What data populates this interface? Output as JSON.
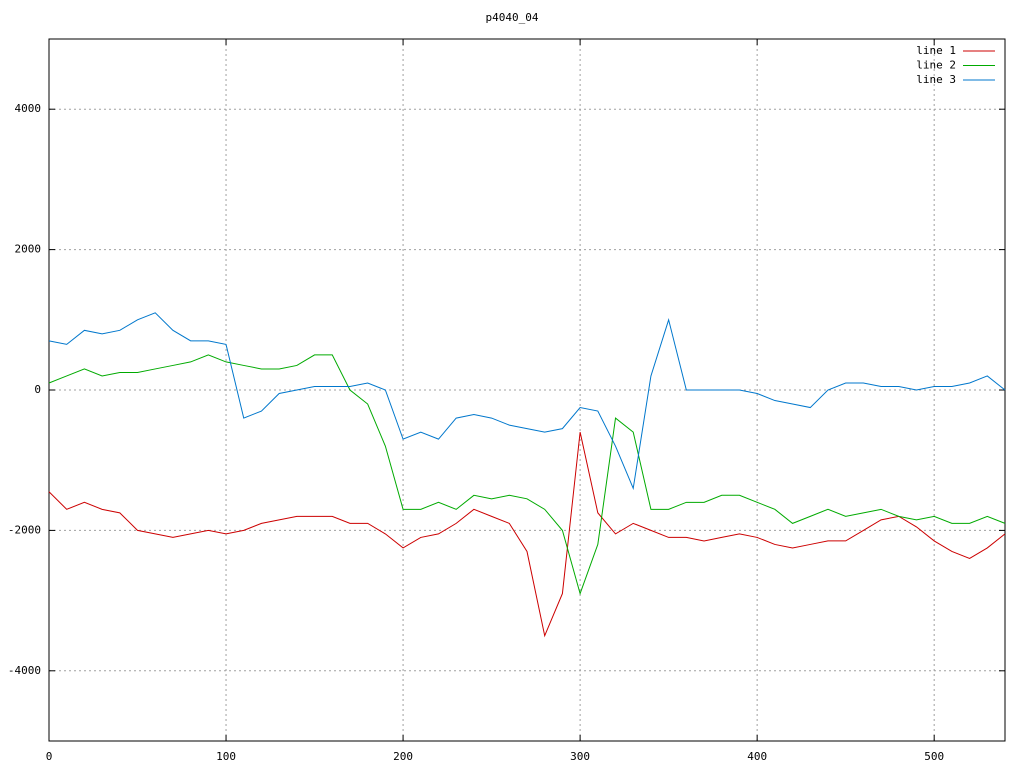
{
  "chart_data": {
    "type": "line",
    "title": "p4040_04",
    "x": [
      0,
      10,
      20,
      30,
      40,
      50,
      60,
      70,
      80,
      90,
      100,
      110,
      120,
      130,
      140,
      150,
      160,
      170,
      180,
      190,
      200,
      210,
      220,
      230,
      240,
      250,
      260,
      270,
      280,
      290,
      300,
      310,
      320,
      330,
      340,
      350,
      360,
      370,
      380,
      390,
      400,
      410,
      420,
      430,
      440,
      450,
      460,
      470,
      480,
      490,
      500,
      510,
      520,
      530,
      540
    ],
    "series": [
      {
        "name": "line 1",
        "color": "#cc0000",
        "values": [
          -1450,
          -1700,
          -1600,
          -1700,
          -1750,
          -2000,
          -2050,
          -2100,
          -2050,
          -2000,
          -2050,
          -2000,
          -1900,
          -1850,
          -1800,
          -1800,
          -1800,
          -1900,
          -1900,
          -2050,
          -2250,
          -2100,
          -2050,
          -1900,
          -1700,
          -1800,
          -1900,
          -2300,
          -3500,
          -2900,
          -600,
          -1750,
          -2050,
          -1900,
          -2000,
          -2100,
          -2100,
          -2150,
          -2100,
          -2050,
          -2100,
          -2200,
          -2250,
          -2200,
          -2150,
          -2150,
          -2000,
          -1850,
          -1800,
          -1950,
          -2150,
          -2300,
          -2400,
          -2250,
          -2050
        ]
      },
      {
        "name": "line 2",
        "color": "#00aa00",
        "values": [
          100,
          200,
          300,
          200,
          250,
          250,
          300,
          350,
          400,
          500,
          400,
          350,
          300,
          300,
          350,
          500,
          500,
          0,
          -200,
          -800,
          -1700,
          -1700,
          -1600,
          -1700,
          -1500,
          -1550,
          -1500,
          -1550,
          -1700,
          -2000,
          -2900,
          -2200,
          -400,
          -600,
          -1700,
          -1700,
          -1600,
          -1600,
          -1500,
          -1500,
          -1600,
          -1700,
          -1900,
          -1800,
          -1700,
          -1800,
          -1750,
          -1700,
          -1800,
          -1850,
          -1800,
          -1900,
          -1900,
          -1800,
          -1900
        ]
      },
      {
        "name": "line 3",
        "color": "#0077cc",
        "values": [
          700,
          650,
          850,
          800,
          850,
          1000,
          1100,
          850,
          700,
          700,
          650,
          -400,
          -300,
          -50,
          0,
          50,
          50,
          50,
          100,
          0,
          -700,
          -600,
          -700,
          -400,
          -350,
          -400,
          -500,
          -550,
          -600,
          -550,
          -250,
          -300,
          -800,
          -1400,
          200,
          1000,
          0,
          0,
          0,
          0,
          -50,
          -150,
          -200,
          -250,
          0,
          100,
          100,
          50,
          50,
          0,
          50,
          50,
          100,
          200,
          0
        ]
      }
    ],
    "xlim": [
      0,
      540
    ],
    "xticks": [
      0,
      100,
      200,
      300,
      400,
      500
    ],
    "ylim": [
      -5000,
      5000
    ],
    "yticks": [
      -4000,
      -2000,
      0,
      2000,
      4000
    ],
    "grid": true,
    "legend": "top-right"
  }
}
